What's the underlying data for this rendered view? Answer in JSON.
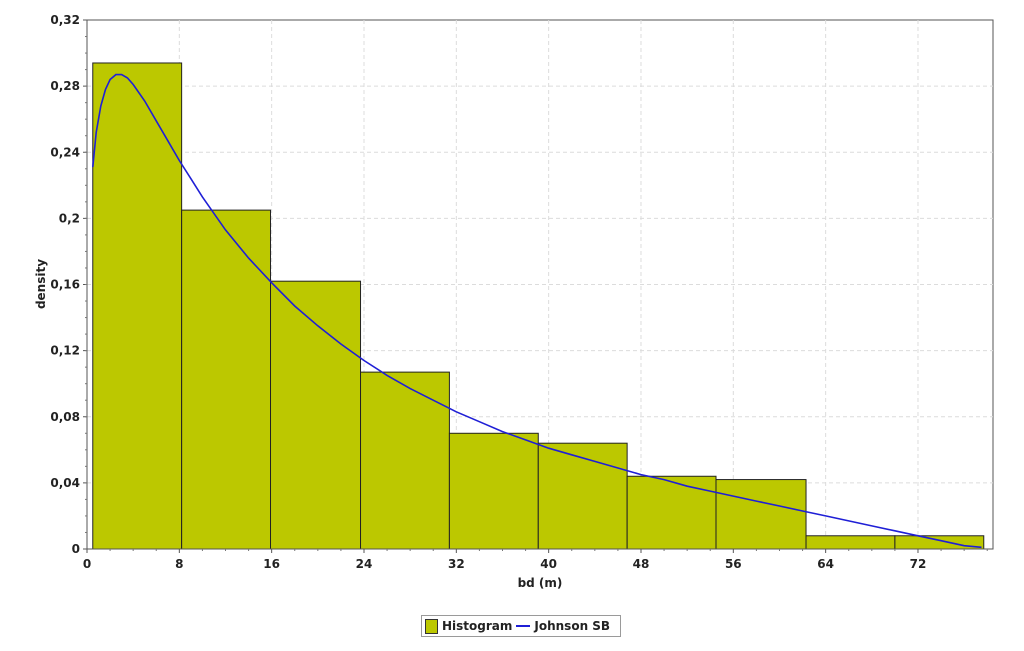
{
  "chart_data": {
    "type": "bar",
    "title": "",
    "xlabel": "bd (m)",
    "ylabel": "density",
    "xlim": [
      0,
      78.5
    ],
    "ylim": [
      0,
      0.32
    ],
    "grid": true,
    "legend_placement": "bottom-center",
    "colors": {
      "histogram": "#bcc800",
      "fit": "#1f1fd6",
      "grid": "#dcdcdc",
      "bar_edge": "#222222"
    },
    "x_ticks": [
      {
        "value": 0,
        "label": "0"
      },
      {
        "value": 8,
        "label": "8"
      },
      {
        "value": 16,
        "label": "16"
      },
      {
        "value": 24,
        "label": "24"
      },
      {
        "value": 32,
        "label": "32"
      },
      {
        "value": 40,
        "label": "40"
      },
      {
        "value": 48,
        "label": "48"
      },
      {
        "value": 56,
        "label": "56"
      },
      {
        "value": 64,
        "label": "64"
      },
      {
        "value": 72,
        "label": "72"
      }
    ],
    "y_ticks": [
      {
        "value": 0,
        "label": "0"
      },
      {
        "value": 0.04,
        "label": "0,04"
      },
      {
        "value": 0.08,
        "label": "0,08"
      },
      {
        "value": 0.12,
        "label": "0,12"
      },
      {
        "value": 0.16,
        "label": "0,16"
      },
      {
        "value": 0.2,
        "label": "0,2"
      },
      {
        "value": 0.24,
        "label": "0,24"
      },
      {
        "value": 0.28,
        "label": "0,28"
      },
      {
        "value": 0.32,
        "label": "0,32"
      }
    ],
    "series": [
      {
        "name": "Histogram",
        "kind": "histogram",
        "bins": [
          {
            "x0": 0.5,
            "x1": 8.2,
            "density": 0.294
          },
          {
            "x0": 8.2,
            "x1": 15.9,
            "density": 0.205
          },
          {
            "x0": 15.9,
            "x1": 23.7,
            "density": 0.162
          },
          {
            "x0": 23.7,
            "x1": 31.4,
            "density": 0.107
          },
          {
            "x0": 31.4,
            "x1": 39.1,
            "density": 0.07
          },
          {
            "x0": 39.1,
            "x1": 46.8,
            "density": 0.064
          },
          {
            "x0": 46.8,
            "x1": 54.5,
            "density": 0.044
          },
          {
            "x0": 54.5,
            "x1": 62.3,
            "density": 0.042
          },
          {
            "x0": 62.3,
            "x1": 70.0,
            "density": 0.008
          },
          {
            "x0": 70.0,
            "x1": 77.7,
            "density": 0.008
          }
        ]
      },
      {
        "name": "Johnson SB",
        "kind": "line",
        "x": [
          0.5,
          0.8,
          1.2,
          1.6,
          2.0,
          2.5,
          3.0,
          3.5,
          4.0,
          5.0,
          6.0,
          7.0,
          8.0,
          9.0,
          10.0,
          12.0,
          14.0,
          16.0,
          18.0,
          20.0,
          22.0,
          24.0,
          26.0,
          28.0,
          30.0,
          32.0,
          34.0,
          36.0,
          38.0,
          40.0,
          42.0,
          44.0,
          46.0,
          48.0,
          50.0,
          52.0,
          54.0,
          56.0,
          58.0,
          60.0,
          62.0,
          64.0,
          66.0,
          68.0,
          70.0,
          72.0,
          74.0,
          76.0,
          77.5
        ],
        "y": [
          0.231,
          0.252,
          0.268,
          0.278,
          0.284,
          0.287,
          0.287,
          0.285,
          0.281,
          0.271,
          0.259,
          0.247,
          0.235,
          0.224,
          0.213,
          0.193,
          0.176,
          0.161,
          0.147,
          0.135,
          0.124,
          0.114,
          0.105,
          0.097,
          0.09,
          0.083,
          0.077,
          0.071,
          0.066,
          0.061,
          0.057,
          0.053,
          0.049,
          0.045,
          0.042,
          0.038,
          0.035,
          0.032,
          0.029,
          0.026,
          0.023,
          0.02,
          0.017,
          0.014,
          0.011,
          0.008,
          0.005,
          0.002,
          0.001
        ]
      }
    ]
  },
  "legend": {
    "items": [
      {
        "label": "Histogram",
        "color": "#bcc800"
      },
      {
        "label": "Johnson SB",
        "color": "#1f1fd6"
      }
    ]
  }
}
